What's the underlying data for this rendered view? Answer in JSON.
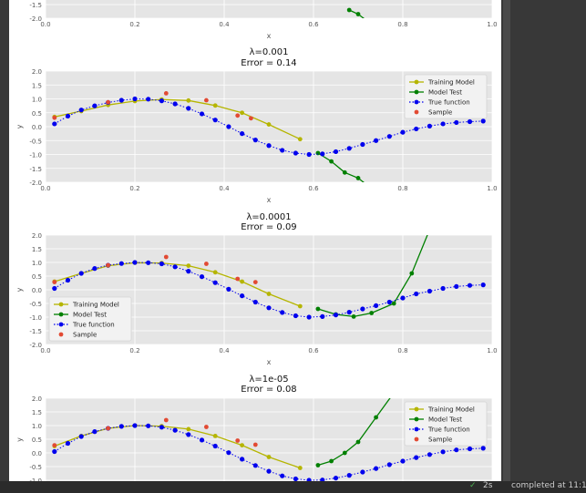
{
  "status": {
    "check_icon": "check-icon",
    "duration": "2s",
    "completed": "completed at 11:1"
  },
  "chart_data": [
    {
      "type": "line",
      "title": "",
      "subtitle": "",
      "xlabel": "x",
      "ylabel": "y",
      "xlim": [
        0,
        1
      ],
      "ylim": [
        -2,
        2
      ],
      "xticks": [
        "0.0",
        "0.2",
        "0.4",
        "0.6",
        "0.8",
        "1.0"
      ],
      "yticks": [
        "-2.0",
        "-1.5"
      ],
      "legend": "",
      "series": [
        {
          "key": "model_test",
          "x": [
            0.68,
            0.7,
            0.72
          ],
          "y": [
            -1.7,
            -1.85,
            -2.1
          ]
        }
      ]
    },
    {
      "type": "line",
      "title": "λ=0.001",
      "subtitle": "Error = 0.14",
      "xlabel": "x",
      "ylabel": "y",
      "xlim": [
        0,
        1
      ],
      "ylim": [
        -2,
        2
      ],
      "xticks": [
        "0.0",
        "0.2",
        "0.4",
        "0.6",
        "0.8",
        "1.0"
      ],
      "yticks": [
        "-2.0",
        "-1.5",
        "-1.0",
        "-0.5",
        "0.0",
        "0.5",
        "1.0",
        "1.5",
        "2.0"
      ],
      "legend": "top-right",
      "legend_entries": [
        "Training Model",
        "Model Test",
        "True function",
        "Sample"
      ],
      "series": [
        {
          "key": "training_model",
          "x": [
            0.02,
            0.08,
            0.14,
            0.2,
            0.26,
            0.32,
            0.38,
            0.44,
            0.5,
            0.57
          ],
          "y": [
            0.35,
            0.56,
            0.78,
            0.92,
            0.98,
            0.94,
            0.76,
            0.5,
            0.08,
            -0.45
          ]
        },
        {
          "key": "model_test",
          "x": [
            0.61,
            0.64,
            0.67,
            0.7,
            0.72
          ],
          "y": [
            -0.95,
            -1.25,
            -1.65,
            -1.85,
            -2.1
          ]
        },
        {
          "key": "true_function",
          "x": [
            0.02,
            0.05,
            0.08,
            0.11,
            0.14,
            0.17,
            0.2,
            0.23,
            0.26,
            0.29,
            0.32,
            0.35,
            0.38,
            0.41,
            0.44,
            0.47,
            0.5,
            0.53,
            0.56,
            0.59,
            0.62,
            0.65,
            0.68,
            0.71,
            0.74,
            0.77,
            0.8,
            0.83,
            0.86,
            0.89,
            0.92,
            0.95,
            0.98
          ],
          "y": [
            0.1,
            0.38,
            0.6,
            0.75,
            0.87,
            0.95,
            1.0,
            0.99,
            0.93,
            0.82,
            0.66,
            0.46,
            0.24,
            0.0,
            -0.25,
            -0.48,
            -0.68,
            -0.85,
            -0.95,
            -1.0,
            -0.98,
            -0.9,
            -0.78,
            -0.64,
            -0.5,
            -0.35,
            -0.2,
            -0.08,
            0.02,
            0.1,
            0.15,
            0.18,
            0.2
          ]
        },
        {
          "key": "sample",
          "x": [
            0.02,
            0.14,
            0.27,
            0.36,
            0.43,
            0.46
          ],
          "y": [
            0.32,
            0.88,
            1.2,
            0.95,
            0.4,
            0.3
          ]
        }
      ]
    },
    {
      "type": "line",
      "title": "λ=0.0001",
      "subtitle": "Error = 0.09",
      "xlabel": "x",
      "ylabel": "y",
      "xlim": [
        0,
        1
      ],
      "ylim": [
        -2,
        2
      ],
      "xticks": [
        "0.0",
        "0.2",
        "0.4",
        "0.6",
        "0.8",
        "1.0"
      ],
      "yticks": [
        "-2.0",
        "-1.5",
        "-1.0",
        "-0.5",
        "0.0",
        "0.5",
        "1.0",
        "1.5",
        "2.0"
      ],
      "legend": "bottom-left",
      "legend_entries": [
        "Training Model",
        "Model Test",
        "True function",
        "Sample"
      ],
      "series": [
        {
          "key": "training_model",
          "x": [
            0.02,
            0.08,
            0.14,
            0.2,
            0.26,
            0.32,
            0.38,
            0.44,
            0.5,
            0.57
          ],
          "y": [
            0.3,
            0.6,
            0.88,
            0.99,
            0.98,
            0.88,
            0.64,
            0.3,
            -0.15,
            -0.6
          ]
        },
        {
          "key": "model_test",
          "x": [
            0.61,
            0.65,
            0.69,
            0.73,
            0.78,
            0.82,
            0.86
          ],
          "y": [
            -0.7,
            -0.9,
            -0.98,
            -0.85,
            -0.5,
            0.6,
            2.2
          ]
        },
        {
          "key": "true_function",
          "x": [
            0.02,
            0.05,
            0.08,
            0.11,
            0.14,
            0.17,
            0.2,
            0.23,
            0.26,
            0.29,
            0.32,
            0.35,
            0.38,
            0.41,
            0.44,
            0.47,
            0.5,
            0.53,
            0.56,
            0.59,
            0.62,
            0.65,
            0.68,
            0.71,
            0.74,
            0.77,
            0.8,
            0.83,
            0.86,
            0.89,
            0.92,
            0.95,
            0.98
          ],
          "y": [
            0.05,
            0.35,
            0.6,
            0.78,
            0.9,
            0.96,
            1.0,
            0.99,
            0.95,
            0.84,
            0.68,
            0.48,
            0.26,
            0.02,
            -0.22,
            -0.45,
            -0.66,
            -0.83,
            -0.95,
            -1.0,
            -0.98,
            -0.92,
            -0.82,
            -0.7,
            -0.58,
            -0.45,
            -0.3,
            -0.15,
            -0.05,
            0.05,
            0.12,
            0.16,
            0.18
          ]
        },
        {
          "key": "sample",
          "x": [
            0.02,
            0.14,
            0.27,
            0.36,
            0.43,
            0.47
          ],
          "y": [
            0.28,
            0.9,
            1.2,
            0.95,
            0.4,
            0.28
          ]
        }
      ]
    },
    {
      "type": "line",
      "title": "λ=1e-05",
      "subtitle": "Error = 0.08",
      "xlabel": "",
      "ylabel": "y",
      "xlim": [
        0,
        1
      ],
      "ylim": [
        -2,
        2
      ],
      "xticks": [],
      "yticks": [
        "-1.0",
        "-0.5",
        "0.0",
        "0.5",
        "1.0",
        "1.5",
        "2.0"
      ],
      "legend": "top-right",
      "legend_entries": [
        "Training Model",
        "Model Test",
        "True function",
        "Sample"
      ],
      "series": [
        {
          "key": "training_model",
          "x": [
            0.02,
            0.08,
            0.14,
            0.2,
            0.26,
            0.32,
            0.38,
            0.44,
            0.5,
            0.57
          ],
          "y": [
            0.25,
            0.62,
            0.9,
            1.0,
            0.98,
            0.87,
            0.62,
            0.28,
            -0.15,
            -0.55
          ]
        },
        {
          "key": "model_test",
          "x": [
            0.61,
            0.64,
            0.67,
            0.7,
            0.74,
            0.78
          ],
          "y": [
            -0.45,
            -0.3,
            0.0,
            0.4,
            1.3,
            2.2
          ]
        },
        {
          "key": "true_function",
          "x": [
            0.02,
            0.05,
            0.08,
            0.11,
            0.14,
            0.17,
            0.2,
            0.23,
            0.26,
            0.29,
            0.32,
            0.35,
            0.38,
            0.41,
            0.44,
            0.47,
            0.5,
            0.53,
            0.56,
            0.59,
            0.62,
            0.65,
            0.68,
            0.71,
            0.74,
            0.77,
            0.8,
            0.83,
            0.86,
            0.89,
            0.92,
            0.95,
            0.98
          ],
          "y": [
            0.05,
            0.35,
            0.6,
            0.78,
            0.9,
            0.97,
            1.0,
            0.99,
            0.94,
            0.83,
            0.67,
            0.47,
            0.25,
            0.01,
            -0.23,
            -0.46,
            -0.67,
            -0.84,
            -0.95,
            -1.0,
            -0.99,
            -0.92,
            -0.82,
            -0.7,
            -0.57,
            -0.43,
            -0.3,
            -0.17,
            -0.06,
            0.04,
            0.11,
            0.15,
            0.17
          ]
        },
        {
          "key": "sample",
          "x": [
            0.02,
            0.14,
            0.27,
            0.36,
            0.43,
            0.47
          ],
          "y": [
            0.28,
            0.9,
            1.2,
            0.95,
            0.45,
            0.3
          ]
        }
      ]
    }
  ],
  "colors": {
    "training_model": "#b5b500",
    "model_test": "#008000",
    "true_function": "#0000ee",
    "sample": "#e24a33",
    "plot_bg": "#e5e5e5",
    "grid": "#ffffff"
  }
}
